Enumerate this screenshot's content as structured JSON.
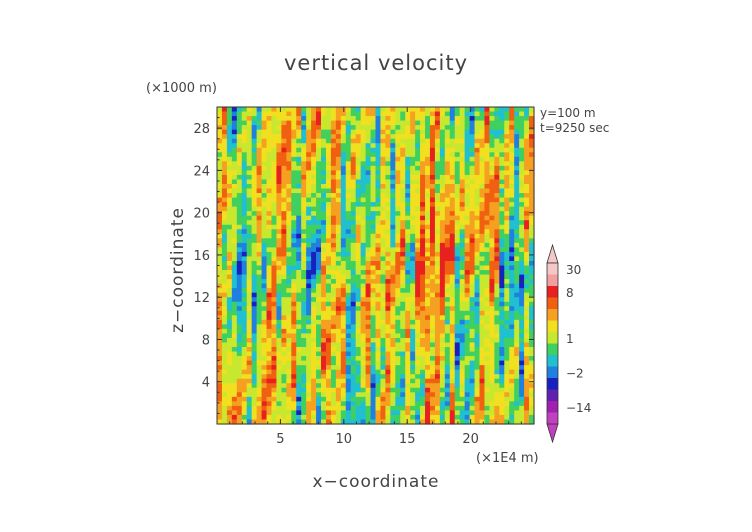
{
  "chart_data": {
    "type": "heatmap",
    "title": "vertical velocity",
    "xlabel": "x−coordinate",
    "ylabel": "z−coordinate",
    "x_unit": "(×1E4 m)",
    "y_unit": "(×1000 m)",
    "annotations": [
      "y=100  m",
      "t=9250  sec"
    ],
    "xlim": [
      0,
      25
    ],
    "ylim": [
      0,
      30
    ],
    "x_ticks": [
      5,
      10,
      15,
      20
    ],
    "y_ticks": [
      4,
      8,
      12,
      16,
      20,
      24,
      28
    ],
    "colorbar": {
      "labels": [
        30,
        8,
        1,
        -2,
        -14
      ],
      "levels": [
        {
          "value": 30,
          "color": "#f5c8c8"
        },
        {
          "value": 14,
          "color": "#f0a0a0"
        },
        {
          "value": 8,
          "color": "#e82020"
        },
        {
          "value": 5,
          "color": "#f06010"
        },
        {
          "value": 3,
          "color": "#f5a020"
        },
        {
          "value": 2,
          "color": "#f0e020"
        },
        {
          "value": 1,
          "color": "#c8e830"
        },
        {
          "value": 0,
          "color": "#40d060"
        },
        {
          "value": -1,
          "color": "#20c0d0"
        },
        {
          "value": -2,
          "color": "#2080e0"
        },
        {
          "value": -5,
          "color": "#1820c0"
        },
        {
          "value": -8,
          "color": "#6020b0"
        },
        {
          "value": -14,
          "color": "#a020b0"
        },
        {
          "value": -20,
          "color": "#c040c0"
        }
      ]
    },
    "grid": false
  }
}
